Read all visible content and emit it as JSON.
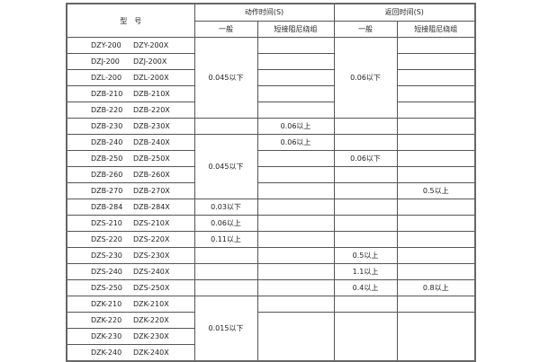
{
  "header": {
    "model_label": "型　号",
    "action_time": "动作时间(S)",
    "return_time": "返回时间(S)",
    "sub_general": "一般",
    "sub_short": "短接阻尼绕组"
  },
  "models": [
    [
      "DZY-200",
      "DZY-200X"
    ],
    [
      "DZJ-200",
      "DZJ-200X"
    ],
    [
      "DZL-200",
      "DZL-200X"
    ],
    [
      "DZB-210",
      "DZB-210X"
    ],
    [
      "DZB-220",
      "DZB-220X"
    ],
    [
      "DZB-230",
      "DZB-230X"
    ],
    [
      "DZB-240",
      "DZB-240X"
    ],
    [
      "DZB-250",
      "DZB-250X"
    ],
    [
      "DZB-260",
      "DZB-260X"
    ],
    [
      "DZB-270",
      "DZB-270X"
    ],
    [
      "DZB-284",
      "DZB-284X"
    ],
    [
      "DZS-210",
      "DZS-210X"
    ],
    [
      "DZS-220",
      "DZS-220X"
    ],
    [
      "DZS-230",
      "DZS-230X"
    ],
    [
      "DZS-240",
      "DZS-240X"
    ],
    [
      "DZS-250",
      "DZS-250X"
    ],
    [
      "DZK-210",
      "DZK-210X"
    ],
    [
      "DZK-220",
      "DZK-220X"
    ],
    [
      "DZK-230",
      "DZK-230X"
    ],
    [
      "DZK-240",
      "DZK-240X"
    ]
  ],
  "columns": [
    [
      {
        "text": "0.045以下",
        "span": 5
      },
      {
        "text": "",
        "span": 1
      },
      {
        "text": "0.045以下",
        "span": 4
      },
      {
        "text": "0.03以下",
        "span": 1
      },
      {
        "text": "0.06以上",
        "span": 1
      },
      {
        "text": "0.11以上",
        "span": 1
      },
      {
        "text": "",
        "span": 1
      },
      {
        "text": "",
        "span": 1
      },
      {
        "text": "",
        "span": 1
      },
      {
        "text": "0.015以下",
        "span": 4
      }
    ],
    [
      {
        "text": "",
        "span": 1
      },
      {
        "text": "",
        "span": 1
      },
      {
        "text": "",
        "span": 1
      },
      {
        "text": "",
        "span": 1
      },
      {
        "text": "",
        "span": 1
      },
      {
        "text": "0.06以上",
        "span": 1
      },
      {
        "text": "0.06以上",
        "span": 1
      },
      {
        "text": "",
        "span": 1
      },
      {
        "text": "",
        "span": 1
      },
      {
        "text": "",
        "span": 1
      },
      {
        "text": "",
        "span": 1
      },
      {
        "text": "",
        "span": 1
      },
      {
        "text": "",
        "span": 1
      },
      {
        "text": "",
        "span": 1
      },
      {
        "text": "",
        "span": 1
      },
      {
        "text": "",
        "span": 1
      },
      {
        "text": "",
        "span": 1
      },
      {
        "text": "",
        "span": 3
      }
    ],
    [
      {
        "text": "0.06以下",
        "span": 5
      },
      {
        "text": "",
        "span": 1
      },
      {
        "text": "",
        "span": 1
      },
      {
        "text": "0.06以下",
        "span": 1
      },
      {
        "text": "",
        "span": 1
      },
      {
        "text": "",
        "span": 1
      },
      {
        "text": "",
        "span": 1
      },
      {
        "text": "",
        "span": 1
      },
      {
        "text": "",
        "span": 1
      },
      {
        "text": "0.5以上",
        "span": 1
      },
      {
        "text": "1.1以上",
        "span": 1
      },
      {
        "text": "0.4以上",
        "span": 1
      },
      {
        "text": "",
        "span": 1
      },
      {
        "text": "",
        "span": 3
      }
    ],
    [
      {
        "text": "",
        "span": 1
      },
      {
        "text": "",
        "span": 1
      },
      {
        "text": "",
        "span": 1
      },
      {
        "text": "",
        "span": 1
      },
      {
        "text": "",
        "span": 1
      },
      {
        "text": "",
        "span": 1
      },
      {
        "text": "",
        "span": 1
      },
      {
        "text": "",
        "span": 1
      },
      {
        "text": "",
        "span": 1
      },
      {
        "text": "0.5以上",
        "span": 1
      },
      {
        "text": "",
        "span": 1
      },
      {
        "text": "",
        "span": 1
      },
      {
        "text": "",
        "span": 1
      },
      {
        "text": "",
        "span": 1
      },
      {
        "text": "",
        "span": 1
      },
      {
        "text": "0.8以上",
        "span": 1
      },
      {
        "text": "",
        "span": 1
      },
      {
        "text": "",
        "span": 3
      }
    ]
  ]
}
